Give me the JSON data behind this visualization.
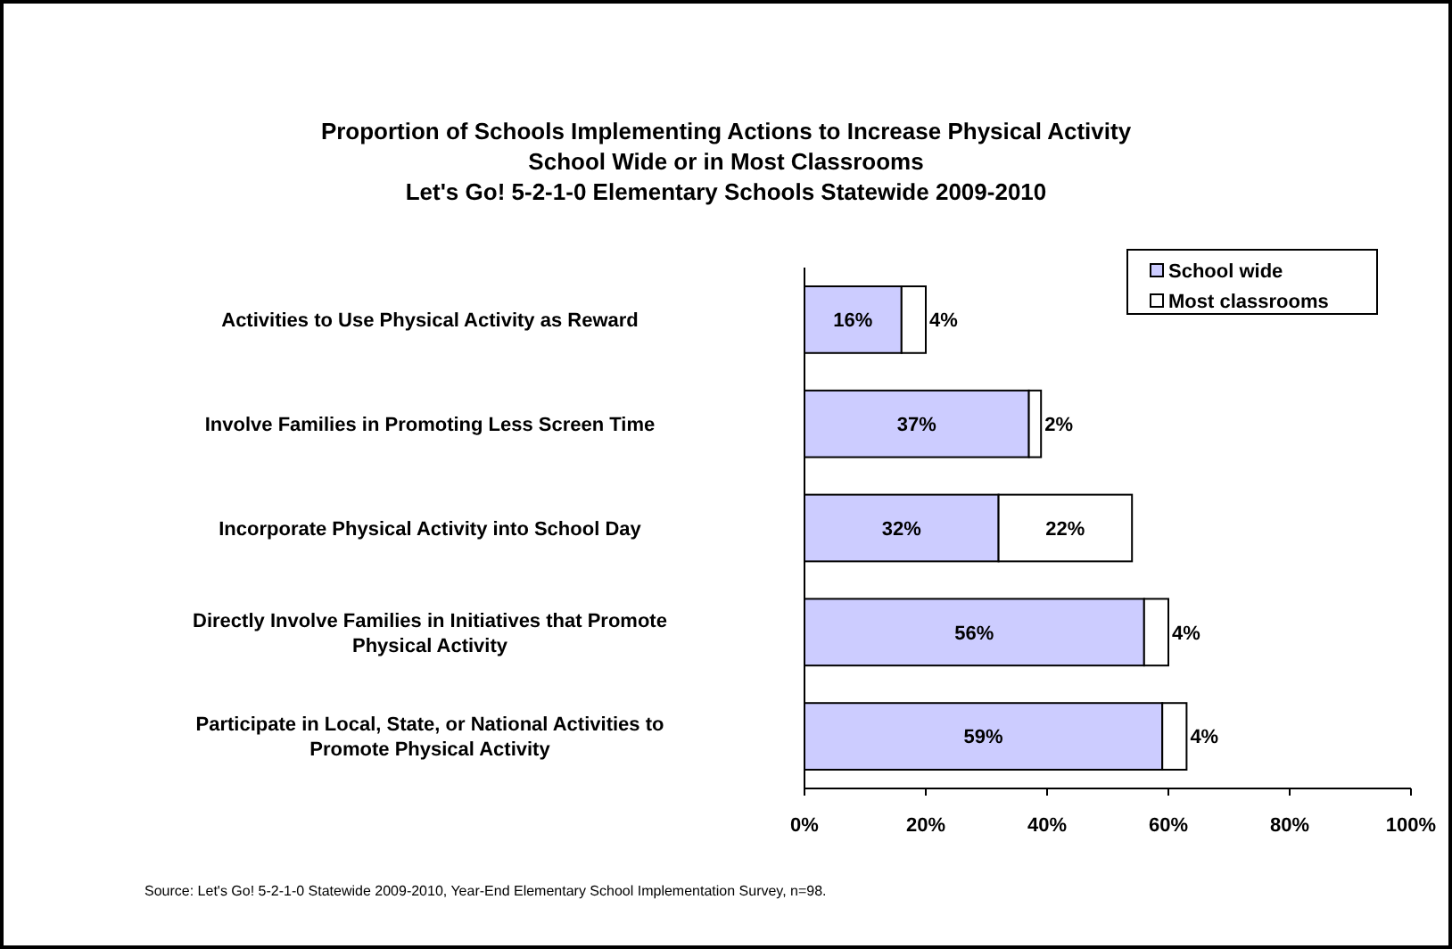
{
  "chart_data": {
    "type": "bar",
    "orientation": "horizontal",
    "stacked": true,
    "title": "Proportion of Schools Implementing Actions to Increase Physical Activity\nSchool Wide or in Most Classrooms\nLet's Go! 5-2-1-0  Elementary Schools Statewide  2009-2010",
    "categories": [
      "Activities to Use Physical Activity as Reward",
      "Involve Families in Promoting Less Screen Time",
      "Incorporate Physical Activity into School Day",
      "Directly Involve Families in Initiatives that Promote Physical Activity",
      "Participate in Local, State, or National Activities to Promote Physical Activity"
    ],
    "series": [
      {
        "name": "School wide",
        "color": "#ccccff",
        "values": [
          16,
          37,
          32,
          56,
          59
        ],
        "value_labels": [
          "16%",
          "37%",
          "32%",
          "56%",
          "59%"
        ]
      },
      {
        "name": "Most classrooms",
        "color": "#ffffff",
        "values": [
          4,
          2,
          22,
          4,
          4
        ],
        "value_labels": [
          "4%",
          "2%",
          "22%",
          "4%",
          "4%"
        ]
      }
    ],
    "xlim": [
      0,
      100
    ],
    "xticks": [
      {
        "value": 0,
        "label": "0%"
      },
      {
        "value": 20,
        "label": "20%"
      },
      {
        "value": 40,
        "label": "40%"
      },
      {
        "value": 60,
        "label": "60%"
      },
      {
        "value": 80,
        "label": "80%"
      },
      {
        "value": 100,
        "label": "100%"
      }
    ],
    "legend": "top right",
    "annotations": [
      "Source: Let's Go! 5-2-1-0 Statewide 2009-2010,  Year-End Elementary School Implementation Survey, n=98."
    ]
  }
}
